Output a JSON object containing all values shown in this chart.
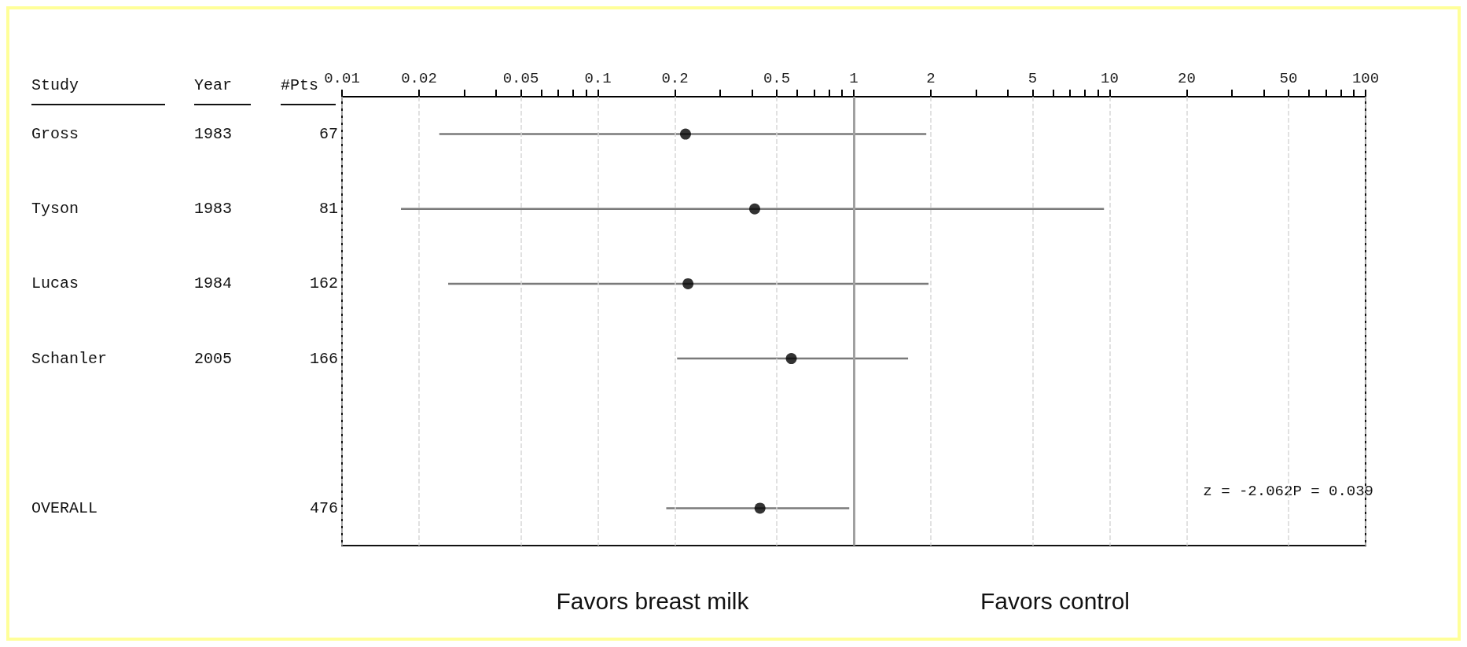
{
  "chart_data": {
    "type": "scatter",
    "orientation": "horizontal",
    "log": "x",
    "grid": "x",
    "marker": "circle",
    "categories": [
      "Gross 1983 67",
      "Tyson 1983 81",
      "Lucas 1984 162",
      "Schanler 2005 166",
      null,
      "OVERALL 476"
    ],
    "series": [
      {
        "color": "#000000",
        "values": [
          0.22,
          0.41,
          0.225,
          0.57,
          null,
          0.43
        ],
        "errors": [
          [
            0.024,
            1.92
          ],
          [
            0.017,
            9.5
          ],
          [
            0.026,
            1.96
          ],
          [
            0.204,
            1.63
          ],
          null,
          [
            0.185,
            0.96
          ]
        ]
      }
    ],
    "xlim": [
      0.01,
      100
    ],
    "xticks": [
      0.01,
      0.02,
      {
        "value": 0.03,
        "label": null
      },
      {
        "value": 0.04,
        "label": null
      },
      0.05,
      {
        "value": 0.06,
        "label": null
      },
      {
        "value": 0.07,
        "label": null
      },
      {
        "value": 0.08,
        "label": null
      },
      {
        "value": 0.09,
        "label": null
      },
      0.1,
      0.2,
      {
        "value": 0.3,
        "label": null
      },
      {
        "value": 0.4,
        "label": null
      },
      0.5,
      {
        "value": 0.6,
        "label": null
      },
      {
        "value": 0.7,
        "label": null
      },
      {
        "value": 0.8,
        "label": null
      },
      {
        "value": 0.9,
        "label": null
      },
      1,
      2,
      {
        "value": 3,
        "label": null
      },
      {
        "value": 4,
        "label": null
      },
      5,
      {
        "value": 6,
        "label": null
      },
      {
        "value": 7,
        "label": null
      },
      {
        "value": 8,
        "label": null
      },
      {
        "value": 9,
        "label": null
      },
      10,
      20,
      {
        "value": 30,
        "label": null
      },
      {
        "value": 40,
        "label": null
      },
      50,
      {
        "value": 60,
        "label": null
      },
      {
        "value": 70,
        "label": null
      },
      {
        "value": 80,
        "label": null
      },
      {
        "value": 90,
        "label": null
      },
      100
    ],
    "ref_lines": [
      {
        "axis": "x",
        "value": 1,
        "color": "#a0a0a0"
      }
    ],
    "annotations": [
      "Study",
      "Year",
      "#Pts",
      "Favors breast milk",
      "Favors control",
      "z = -2.062P = 0.039"
    ]
  }
}
